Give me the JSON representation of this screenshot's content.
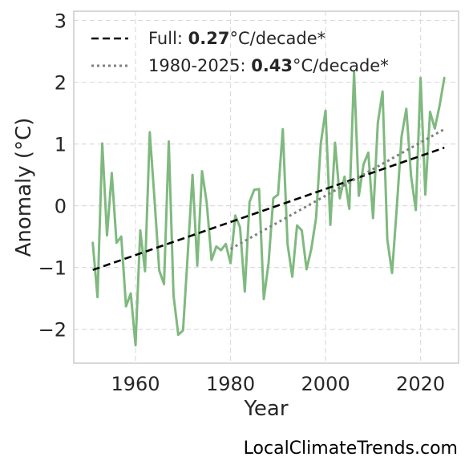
{
  "chart_data": {
    "type": "line",
    "xlabel": "Year",
    "ylabel": "Anomaly (°C)",
    "xlim": [
      1947,
      2028
    ],
    "ylim": [
      -2.55,
      3.15
    ],
    "xticks": [
      1960,
      1980,
      2000,
      2020
    ],
    "yticks": [
      -2,
      -1,
      0,
      1,
      2,
      3
    ],
    "ytick_labels": [
      "−2",
      "−1",
      "0",
      "1",
      "2",
      "3"
    ],
    "grid": true,
    "legend_position": "top-left",
    "series": [
      {
        "color": "#7fb97f",
        "x": [
          1951,
          1952,
          1953,
          1954,
          1955,
          1956,
          1957,
          1958,
          1959,
          1960,
          1961,
          1962,
          1963,
          1964,
          1965,
          1966,
          1967,
          1968,
          1969,
          1970,
          1971,
          1972,
          1973,
          1974,
          1975,
          1976,
          1977,
          1978,
          1979,
          1980,
          1981,
          1982,
          1983,
          1984,
          1985,
          1986,
          1987,
          1988,
          1989,
          1990,
          1991,
          1992,
          1993,
          1994,
          1995,
          1996,
          1997,
          1998,
          1999,
          2000,
          2001,
          2002,
          2003,
          2004,
          2005,
          2006,
          2007,
          2008,
          2009,
          2010,
          2011,
          2012,
          2013,
          2014,
          2015,
          2016,
          2017,
          2018,
          2019,
          2020,
          2021,
          2022,
          2023,
          2024,
          2025
        ],
        "y": [
          -0.6,
          -1.48,
          1.01,
          -0.48,
          0.53,
          -0.6,
          -0.5,
          -1.63,
          -1.42,
          -2.26,
          -0.4,
          -1.06,
          1.19,
          0.1,
          -1.05,
          -1.27,
          1.04,
          -1.45,
          -2.09,
          -2.02,
          -0.78,
          0.5,
          -0.97,
          0.56,
          0.04,
          -0.88,
          -0.66,
          -0.72,
          -0.62,
          -0.93,
          -0.16,
          -0.35,
          -1.39,
          0.06,
          0.26,
          0.27,
          -1.51,
          -0.93,
          0.12,
          0.18,
          1.24,
          -0.62,
          -1.15,
          -0.32,
          -0.4,
          -1.03,
          -0.7,
          -0.2,
          1.01,
          1.54,
          -0.31,
          1.02,
          0.12,
          0.47,
          -0.05,
          2.17,
          0.16,
          0.67,
          0.86,
          -0.2,
          1.34,
          1.85,
          -0.55,
          -1.09,
          -0.02,
          1.12,
          1.57,
          0.48,
          -0.07,
          2.07,
          0.18,
          1.52,
          1.25,
          1.62,
          2.07
        ]
      }
    ],
    "trends": [
      {
        "style": "dashed",
        "color": "#000000",
        "x": [
          1951,
          2025
        ],
        "y": [
          -1.04,
          0.94
        ],
        "legend_prefix": "Full: ",
        "legend_value": "0.27",
        "legend_suffix": "°C/decade*"
      },
      {
        "style": "dotted",
        "color": "#808080",
        "x": [
          1980,
          2025
        ],
        "y": [
          -0.7,
          1.24
        ],
        "legend_prefix": "1980-2025: ",
        "legend_value": "0.43",
        "legend_suffix": "°C/decade*"
      }
    ]
  },
  "credit": "LocalClimateTrends.com"
}
